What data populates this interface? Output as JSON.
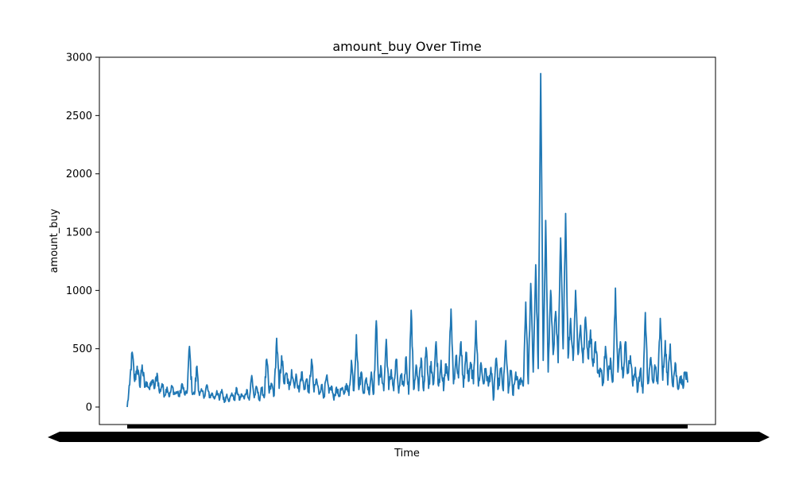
{
  "chart_data": {
    "type": "line",
    "title": "amount_buy Over Time",
    "xlabel": "Time",
    "ylabel": "amount_buy",
    "ylim": [
      -150,
      3000
    ],
    "yticks": [
      0,
      500,
      1000,
      1500,
      2000,
      2500,
      3000
    ],
    "x_tick_labels_note": "",
    "grid": false,
    "series": [
      {
        "color": "#1f77b4",
        "key_points": [
          [
            0,
            0
          ],
          [
            1,
            190
          ],
          [
            2,
            470
          ],
          [
            3,
            220
          ],
          [
            4,
            350
          ],
          [
            5,
            180
          ],
          [
            6,
            360
          ],
          [
            7,
            170
          ],
          [
            8,
            210
          ],
          [
            9,
            150
          ],
          [
            10,
            230
          ],
          [
            11,
            160
          ],
          [
            12,
            290
          ],
          [
            13,
            120
          ],
          [
            14,
            200
          ],
          [
            15,
            100
          ],
          [
            16,
            170
          ],
          [
            17,
            90
          ],
          [
            18,
            180
          ],
          [
            19,
            110
          ],
          [
            20,
            130
          ],
          [
            21,
            90
          ],
          [
            22,
            200
          ],
          [
            23,
            110
          ],
          [
            24,
            120
          ],
          [
            25,
            520
          ],
          [
            26,
            130
          ],
          [
            27,
            110
          ],
          [
            28,
            350
          ],
          [
            29,
            100
          ],
          [
            30,
            140
          ],
          [
            31,
            90
          ],
          [
            32,
            190
          ],
          [
            33,
            80
          ],
          [
            34,
            120
          ],
          [
            35,
            70
          ],
          [
            36,
            140
          ],
          [
            37,
            60
          ],
          [
            38,
            150
          ],
          [
            39,
            40
          ],
          [
            40,
            110
          ],
          [
            41,
            50
          ],
          [
            42,
            120
          ],
          [
            43,
            60
          ],
          [
            44,
            160
          ],
          [
            45,
            60
          ],
          [
            46,
            110
          ],
          [
            47,
            70
          ],
          [
            48,
            150
          ],
          [
            49,
            60
          ],
          [
            50,
            270
          ],
          [
            51,
            80
          ],
          [
            52,
            170
          ],
          [
            53,
            60
          ],
          [
            54,
            160
          ],
          [
            55,
            80
          ],
          [
            56,
            410
          ],
          [
            57,
            120
          ],
          [
            58,
            200
          ],
          [
            59,
            100
          ],
          [
            60,
            590
          ],
          [
            61,
            160
          ],
          [
            62,
            440
          ],
          [
            63,
            200
          ],
          [
            64,
            290
          ],
          [
            65,
            150
          ],
          [
            66,
            320
          ],
          [
            67,
            190
          ],
          [
            68,
            260
          ],
          [
            69,
            130
          ],
          [
            70,
            300
          ],
          [
            71,
            150
          ],
          [
            72,
            240
          ],
          [
            73,
            120
          ],
          [
            74,
            410
          ],
          [
            75,
            130
          ],
          [
            76,
            240
          ],
          [
            77,
            110
          ],
          [
            78,
            190
          ],
          [
            79,
            90
          ],
          [
            80,
            260
          ],
          [
            81,
            120
          ],
          [
            82,
            180
          ],
          [
            83,
            60
          ],
          [
            84,
            170
          ],
          [
            85,
            90
          ],
          [
            86,
            160
          ],
          [
            87,
            110
          ],
          [
            88,
            200
          ],
          [
            89,
            100
          ],
          [
            90,
            400
          ],
          [
            91,
            140
          ],
          [
            92,
            620
          ],
          [
            93,
            150
          ],
          [
            94,
            300
          ],
          [
            95,
            120
          ],
          [
            96,
            250
          ],
          [
            97,
            120
          ],
          [
            98,
            300
          ],
          [
            99,
            120
          ],
          [
            100,
            740
          ],
          [
            101,
            190
          ],
          [
            102,
            330
          ],
          [
            103,
            140
          ],
          [
            104,
            580
          ],
          [
            105,
            150
          ],
          [
            106,
            320
          ],
          [
            107,
            140
          ],
          [
            108,
            410
          ],
          [
            109,
            120
          ],
          [
            110,
            260
          ],
          [
            111,
            180
          ],
          [
            112,
            430
          ],
          [
            113,
            110
          ],
          [
            114,
            830
          ],
          [
            115,
            150
          ],
          [
            116,
            360
          ],
          [
            117,
            140
          ],
          [
            118,
            420
          ],
          [
            119,
            140
          ],
          [
            120,
            510
          ],
          [
            121,
            160
          ],
          [
            122,
            390
          ],
          [
            123,
            200
          ],
          [
            124,
            560
          ],
          [
            125,
            180
          ],
          [
            126,
            400
          ],
          [
            127,
            140
          ],
          [
            128,
            370
          ],
          [
            129,
            230
          ],
          [
            130,
            840
          ],
          [
            131,
            200
          ],
          [
            132,
            440
          ],
          [
            133,
            250
          ],
          [
            134,
            560
          ],
          [
            135,
            170
          ],
          [
            136,
            470
          ],
          [
            137,
            220
          ],
          [
            138,
            370
          ],
          [
            139,
            200
          ],
          [
            140,
            740
          ],
          [
            141,
            180
          ],
          [
            142,
            380
          ],
          [
            143,
            200
          ],
          [
            144,
            330
          ],
          [
            145,
            180
          ],
          [
            146,
            340
          ],
          [
            147,
            60
          ],
          [
            148,
            410
          ],
          [
            149,
            160
          ],
          [
            150,
            330
          ],
          [
            151,
            140
          ],
          [
            152,
            570
          ],
          [
            153,
            120
          ],
          [
            154,
            310
          ],
          [
            155,
            100
          ],
          [
            156,
            300
          ],
          [
            157,
            160
          ],
          [
            158,
            250
          ],
          [
            159,
            180
          ],
          [
            160,
            900
          ],
          [
            161,
            200
          ],
          [
            162,
            1060
          ],
          [
            163,
            300
          ],
          [
            164,
            1220
          ],
          [
            165,
            330
          ],
          [
            166,
            2860
          ],
          [
            167,
            400
          ],
          [
            168,
            1600
          ],
          [
            169,
            300
          ],
          [
            170,
            1000
          ],
          [
            171,
            450
          ],
          [
            172,
            820
          ],
          [
            173,
            380
          ],
          [
            174,
            1450
          ],
          [
            175,
            500
          ],
          [
            176,
            1660
          ],
          [
            177,
            420
          ],
          [
            178,
            760
          ],
          [
            179,
            400
          ],
          [
            180,
            1000
          ],
          [
            181,
            450
          ],
          [
            182,
            700
          ],
          [
            183,
            380
          ],
          [
            184,
            770
          ],
          [
            185,
            420
          ],
          [
            186,
            660
          ],
          [
            187,
            350
          ],
          [
            188,
            560
          ],
          [
            189,
            290
          ],
          [
            190,
            330
          ],
          [
            191,
            200
          ],
          [
            192,
            520
          ],
          [
            193,
            230
          ],
          [
            194,
            420
          ],
          [
            195,
            220
          ],
          [
            196,
            1020
          ],
          [
            197,
            300
          ],
          [
            198,
            560
          ],
          [
            199,
            250
          ],
          [
            200,
            560
          ],
          [
            201,
            290
          ],
          [
            202,
            440
          ],
          [
            203,
            180
          ],
          [
            204,
            340
          ],
          [
            205,
            140
          ],
          [
            206,
            320
          ],
          [
            207,
            120
          ],
          [
            208,
            810
          ],
          [
            209,
            200
          ],
          [
            210,
            410
          ],
          [
            211,
            220
          ],
          [
            212,
            330
          ],
          [
            213,
            200
          ],
          [
            214,
            760
          ],
          [
            215,
            230
          ],
          [
            216,
            570
          ],
          [
            217,
            190
          ],
          [
            218,
            540
          ],
          [
            219,
            180
          ],
          [
            220,
            380
          ],
          [
            221,
            160
          ],
          [
            222,
            260
          ],
          [
            223,
            190
          ],
          [
            224,
            300
          ],
          [
            225,
            210
          ]
        ]
      }
    ]
  }
}
